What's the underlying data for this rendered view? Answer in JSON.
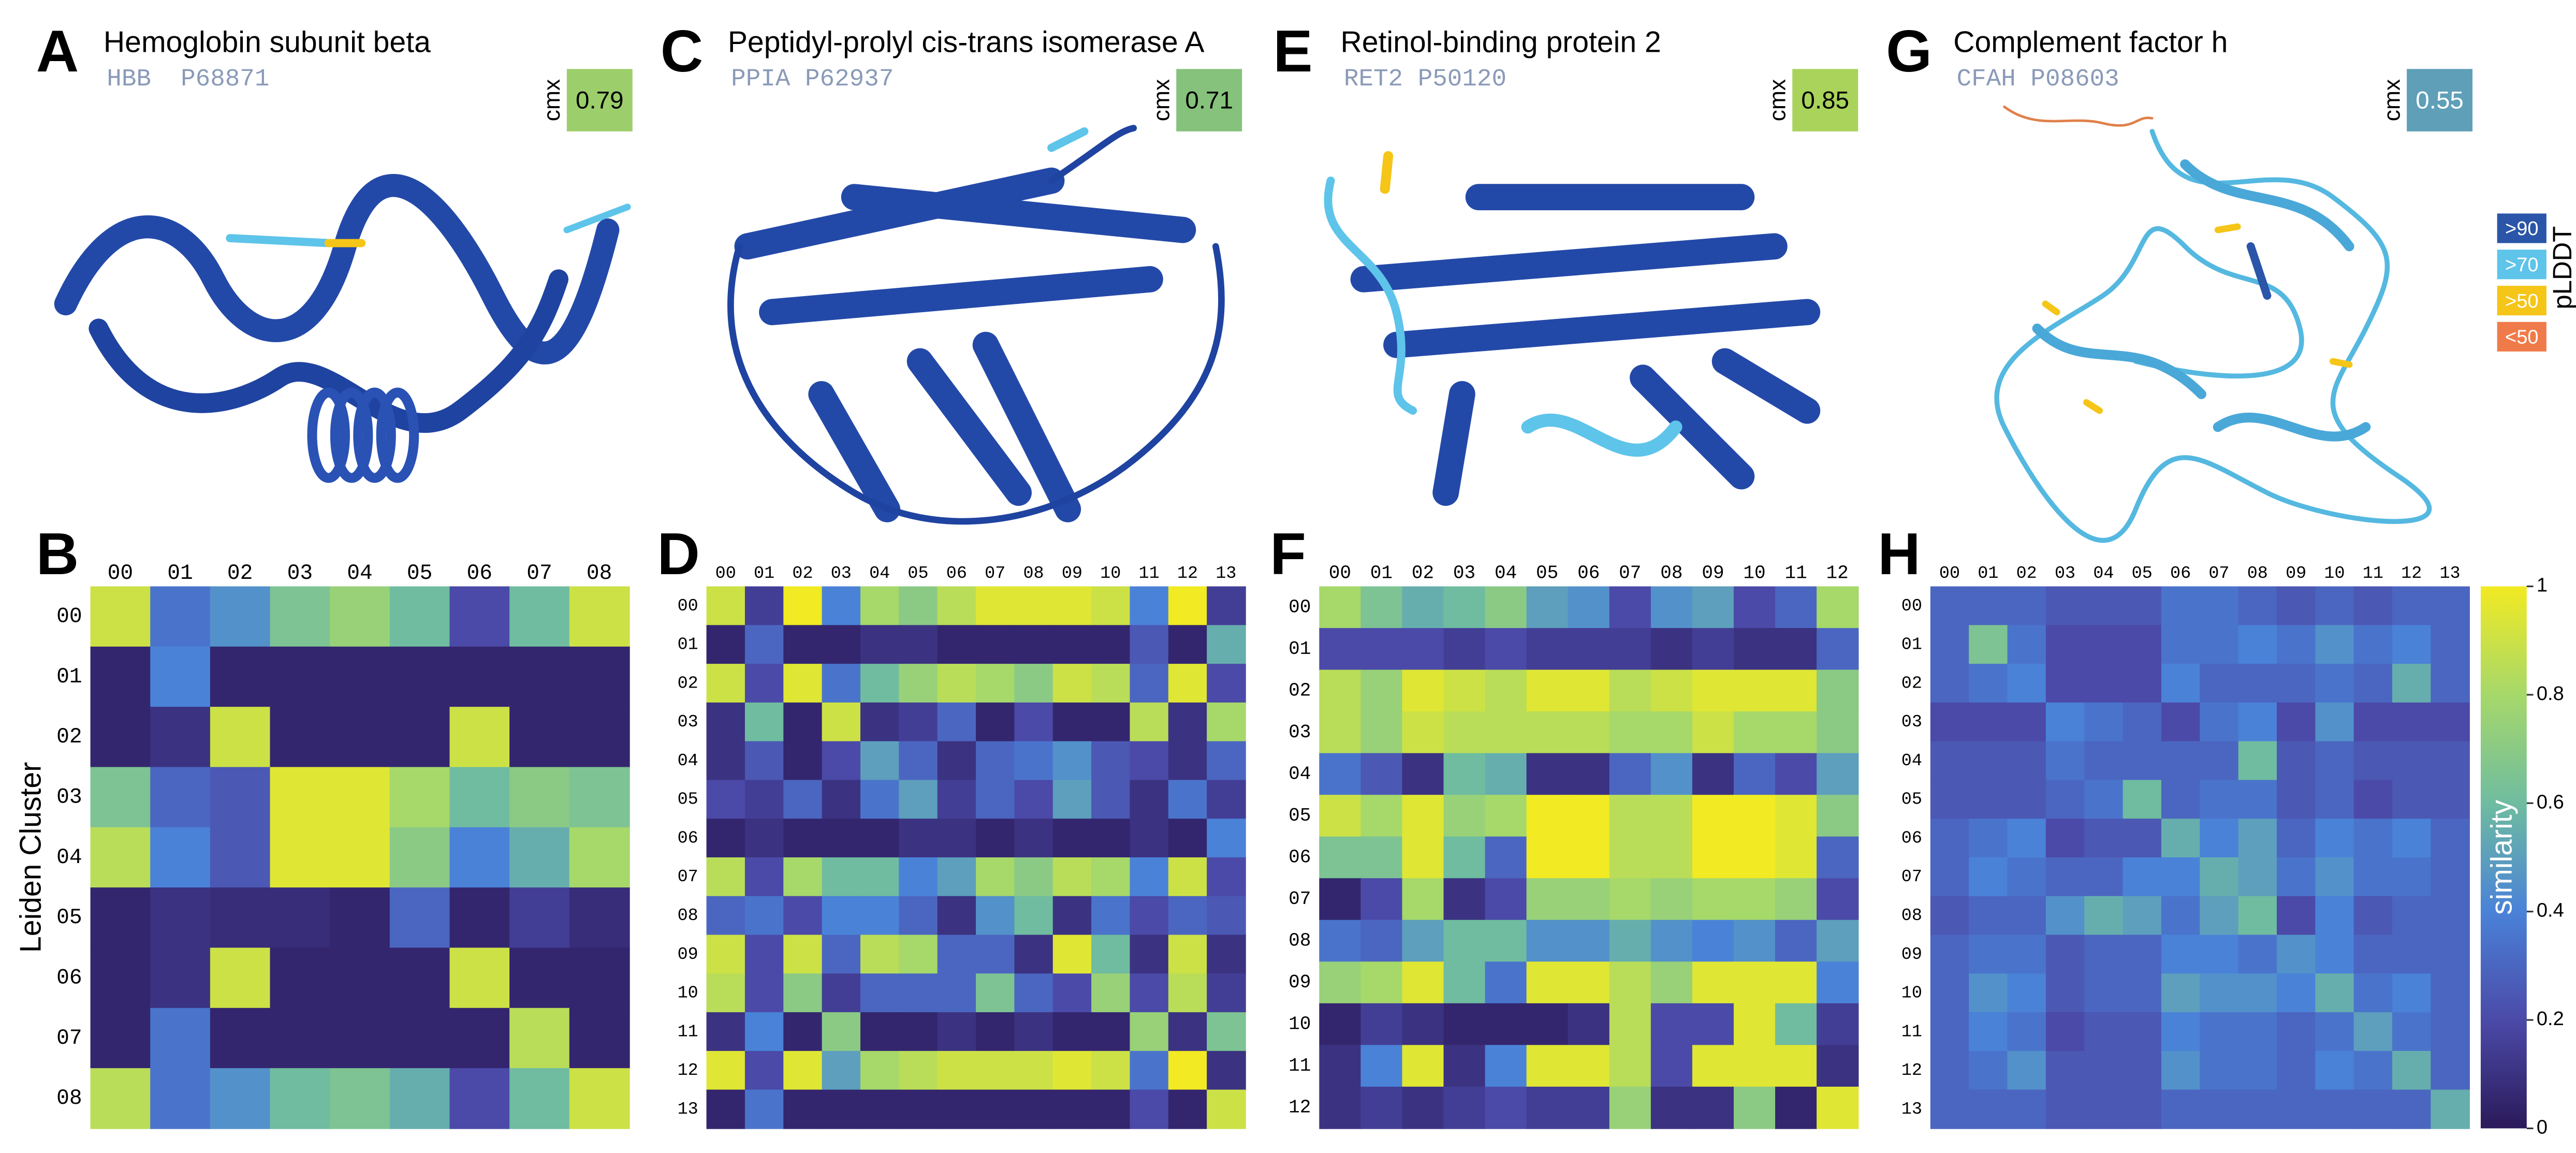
{
  "score_label": "cmx",
  "proteins": [
    {
      "letter": "A",
      "name": "Hemoglobin subunit beta",
      "gene": "HBB",
      "accession": "P68871",
      "cmx": 0.79,
      "cmx_color": "#9ccf6c"
    },
    {
      "letter": "C",
      "name": "Peptidyl-prolyl cis-trans isomerase A",
      "gene": "PPIA",
      "accession": "P62937",
      "cmx": 0.71,
      "cmx_color": "#86c27c"
    },
    {
      "letter": "E",
      "name": "Retinol-binding protein 2",
      "gene": "RET2",
      "accession": "P50120",
      "cmx": 0.85,
      "cmx_color": "#a9d35a"
    },
    {
      "letter": "G",
      "name": "Complement factor h",
      "gene": "CFAH",
      "accession": "P08603",
      "cmx": 0.55,
      "cmx_color": "#5f9fb8"
    }
  ],
  "plddt_legend": {
    "title": "pLDDT",
    "items": [
      {
        "label": ">90",
        "color": "#2a55a8"
      },
      {
        "label": ">70",
        "color": "#5ec4ea"
      },
      {
        "label": ">50",
        "color": "#f5c518"
      },
      {
        "label": "<50",
        "color": "#f07b4a"
      }
    ]
  },
  "chart_data": [
    {
      "type": "heatmap",
      "letter": "B",
      "ylabel": "Leiden Cluster",
      "categories": [
        "00",
        "01",
        "02",
        "03",
        "04",
        "05",
        "06",
        "07",
        "08"
      ],
      "values": [
        [
          0.9,
          0.35,
          0.45,
          0.65,
          0.75,
          0.6,
          0.2,
          0.6,
          0.9
        ],
        [
          0.05,
          0.4,
          0.05,
          0.05,
          0.05,
          0.05,
          0.05,
          0.05,
          0.05
        ],
        [
          0.05,
          0.1,
          0.9,
          0.05,
          0.05,
          0.05,
          0.9,
          0.05,
          0.05
        ],
        [
          0.65,
          0.3,
          0.25,
          0.95,
          0.95,
          0.8,
          0.6,
          0.7,
          0.65
        ],
        [
          0.85,
          0.4,
          0.25,
          0.95,
          0.95,
          0.7,
          0.4,
          0.55,
          0.8
        ],
        [
          0.05,
          0.1,
          0.08,
          0.08,
          0.05,
          0.3,
          0.05,
          0.15,
          0.08
        ],
        [
          0.05,
          0.1,
          0.9,
          0.05,
          0.05,
          0.05,
          0.9,
          0.05,
          0.05
        ],
        [
          0.05,
          0.35,
          0.05,
          0.05,
          0.05,
          0.05,
          0.05,
          0.85,
          0.05
        ],
        [
          0.85,
          0.35,
          0.45,
          0.6,
          0.65,
          0.55,
          0.2,
          0.6,
          0.9
        ]
      ]
    },
    {
      "type": "heatmap",
      "letter": "D",
      "categories": [
        "00",
        "01",
        "02",
        "03",
        "04",
        "05",
        "06",
        "07",
        "08",
        "09",
        "10",
        "11",
        "12",
        "13"
      ],
      "values": [
        [
          0.9,
          0.15,
          1,
          0.4,
          0.8,
          0.7,
          0.85,
          0.95,
          0.95,
          0.95,
          0.9,
          0.4,
          1,
          0.15
        ],
        [
          0.05,
          0.3,
          0.05,
          0.05,
          0.1,
          0.1,
          0.05,
          0.05,
          0.05,
          0.05,
          0.05,
          0.25,
          0.05,
          0.55
        ],
        [
          0.9,
          0.2,
          0.95,
          0.35,
          0.6,
          0.75,
          0.85,
          0.8,
          0.7,
          0.9,
          0.85,
          0.3,
          0.95,
          0.2
        ],
        [
          0.1,
          0.6,
          0.05,
          0.9,
          0.1,
          0.15,
          0.3,
          0.05,
          0.2,
          0.05,
          0.05,
          0.85,
          0.1,
          0.8
        ],
        [
          0.1,
          0.25,
          0.05,
          0.2,
          0.5,
          0.3,
          0.1,
          0.3,
          0.35,
          0.45,
          0.25,
          0.2,
          0.1,
          0.3
        ],
        [
          0.2,
          0.15,
          0.3,
          0.1,
          0.35,
          0.5,
          0.15,
          0.3,
          0.2,
          0.5,
          0.25,
          0.1,
          0.35,
          0.15
        ],
        [
          0.05,
          0.1,
          0.05,
          0.05,
          0.05,
          0.1,
          0.1,
          0.05,
          0.1,
          0.05,
          0.05,
          0.1,
          0.05,
          0.4
        ],
        [
          0.85,
          0.2,
          0.8,
          0.6,
          0.6,
          0.4,
          0.5,
          0.8,
          0.7,
          0.85,
          0.8,
          0.4,
          0.9,
          0.2
        ],
        [
          0.3,
          0.35,
          0.2,
          0.4,
          0.4,
          0.3,
          0.1,
          0.45,
          0.6,
          0.1,
          0.35,
          0.2,
          0.3,
          0.25
        ],
        [
          0.9,
          0.2,
          0.9,
          0.3,
          0.85,
          0.8,
          0.3,
          0.3,
          0.1,
          0.95,
          0.6,
          0.1,
          0.9,
          0.1
        ],
        [
          0.85,
          0.2,
          0.7,
          0.15,
          0.3,
          0.3,
          0.3,
          0.65,
          0.3,
          0.2,
          0.75,
          0.2,
          0.85,
          0.15
        ],
        [
          0.1,
          0.4,
          0.05,
          0.7,
          0.05,
          0.05,
          0.1,
          0.05,
          0.1,
          0.05,
          0.05,
          0.75,
          0.1,
          0.65
        ],
        [
          0.95,
          0.2,
          0.95,
          0.5,
          0.8,
          0.85,
          0.9,
          0.9,
          0.9,
          0.95,
          0.9,
          0.35,
          1,
          0.1
        ],
        [
          0.05,
          0.35,
          0.05,
          0.05,
          0.05,
          0.05,
          0.05,
          0.05,
          0.05,
          0.05,
          0.05,
          0.2,
          0.05,
          0.9
        ]
      ]
    },
    {
      "type": "heatmap",
      "letter": "F",
      "categories": [
        "00",
        "01",
        "02",
        "03",
        "04",
        "05",
        "06",
        "07",
        "08",
        "09",
        "10",
        "11",
        "12"
      ],
      "values": [
        [
          0.8,
          0.65,
          0.55,
          0.6,
          0.7,
          0.5,
          0.45,
          0.2,
          0.45,
          0.5,
          0.2,
          0.3,
          0.8
        ],
        [
          0.2,
          0.2,
          0.2,
          0.15,
          0.2,
          0.15,
          0.15,
          0.15,
          0.1,
          0.15,
          0.1,
          0.1,
          0.3
        ],
        [
          0.85,
          0.75,
          0.95,
          0.9,
          0.85,
          0.95,
          0.95,
          0.85,
          0.9,
          0.95,
          0.95,
          0.95,
          0.7
        ],
        [
          0.85,
          0.75,
          0.9,
          0.85,
          0.85,
          0.85,
          0.85,
          0.8,
          0.8,
          0.9,
          0.8,
          0.8,
          0.7
        ],
        [
          0.35,
          0.25,
          0.1,
          0.6,
          0.55,
          0.1,
          0.1,
          0.3,
          0.45,
          0.1,
          0.3,
          0.2,
          0.5
        ],
        [
          0.9,
          0.8,
          0.95,
          0.75,
          0.8,
          1,
          1,
          0.85,
          0.85,
          1,
          1,
          0.95,
          0.7
        ],
        [
          0.65,
          0.65,
          0.95,
          0.6,
          0.3,
          1,
          1,
          0.85,
          0.85,
          1,
          1,
          0.95,
          0.3
        ],
        [
          0.05,
          0.2,
          0.8,
          0.1,
          0.2,
          0.75,
          0.75,
          0.8,
          0.75,
          0.8,
          0.8,
          0.75,
          0.2
        ],
        [
          0.35,
          0.3,
          0.5,
          0.6,
          0.6,
          0.45,
          0.45,
          0.55,
          0.45,
          0.4,
          0.45,
          0.3,
          0.5
        ],
        [
          0.75,
          0.8,
          0.95,
          0.6,
          0.35,
          0.95,
          0.95,
          0.85,
          0.75,
          0.95,
          0.95,
          0.95,
          0.4
        ],
        [
          0.05,
          0.15,
          0.1,
          0.05,
          0.05,
          0.05,
          0.1,
          0.85,
          0.2,
          0.2,
          0.95,
          0.6,
          0.15
        ],
        [
          0.1,
          0.4,
          0.95,
          0.1,
          0.4,
          0.95,
          0.95,
          0.85,
          0.2,
          0.95,
          0.95,
          0.95,
          0.1
        ],
        [
          0.1,
          0.15,
          0.1,
          0.15,
          0.2,
          0.15,
          0.15,
          0.75,
          0.1,
          0.1,
          0.7,
          0.05,
          0.95
        ]
      ]
    },
    {
      "type": "heatmap",
      "letter": "H",
      "categories": [
        "00",
        "01",
        "02",
        "03",
        "04",
        "05",
        "06",
        "07",
        "08",
        "09",
        "10",
        "11",
        "12",
        "13"
      ],
      "values": [
        [
          0.3,
          0.3,
          0.3,
          0.25,
          0.25,
          0.25,
          0.35,
          0.35,
          0.3,
          0.25,
          0.3,
          0.25,
          0.3,
          0.3
        ],
        [
          0.3,
          0.65,
          0.35,
          0.2,
          0.2,
          0.2,
          0.35,
          0.35,
          0.4,
          0.35,
          0.45,
          0.35,
          0.4,
          0.3
        ],
        [
          0.3,
          0.35,
          0.4,
          0.2,
          0.2,
          0.2,
          0.4,
          0.3,
          0.3,
          0.3,
          0.35,
          0.3,
          0.55,
          0.3
        ],
        [
          0.2,
          0.2,
          0.2,
          0.4,
          0.35,
          0.3,
          0.2,
          0.35,
          0.4,
          0.2,
          0.45,
          0.2,
          0.2,
          0.2
        ],
        [
          0.25,
          0.25,
          0.25,
          0.35,
          0.3,
          0.3,
          0.3,
          0.3,
          0.6,
          0.25,
          0.3,
          0.25,
          0.25,
          0.25
        ],
        [
          0.25,
          0.25,
          0.25,
          0.3,
          0.35,
          0.6,
          0.3,
          0.35,
          0.35,
          0.25,
          0.3,
          0.2,
          0.25,
          0.25
        ],
        [
          0.3,
          0.35,
          0.4,
          0.2,
          0.25,
          0.25,
          0.55,
          0.4,
          0.5,
          0.3,
          0.4,
          0.35,
          0.4,
          0.3
        ],
        [
          0.3,
          0.4,
          0.35,
          0.3,
          0.3,
          0.4,
          0.4,
          0.55,
          0.5,
          0.35,
          0.45,
          0.35,
          0.35,
          0.3
        ],
        [
          0.25,
          0.3,
          0.3,
          0.45,
          0.55,
          0.5,
          0.35,
          0.5,
          0.6,
          0.2,
          0.4,
          0.25,
          0.3,
          0.3
        ],
        [
          0.3,
          0.35,
          0.35,
          0.25,
          0.3,
          0.3,
          0.4,
          0.4,
          0.35,
          0.45,
          0.4,
          0.3,
          0.3,
          0.3
        ],
        [
          0.3,
          0.45,
          0.4,
          0.25,
          0.3,
          0.3,
          0.5,
          0.45,
          0.45,
          0.4,
          0.55,
          0.35,
          0.4,
          0.3
        ],
        [
          0.3,
          0.4,
          0.35,
          0.2,
          0.25,
          0.25,
          0.4,
          0.35,
          0.35,
          0.3,
          0.35,
          0.5,
          0.35,
          0.3
        ],
        [
          0.3,
          0.35,
          0.45,
          0.25,
          0.25,
          0.25,
          0.45,
          0.35,
          0.35,
          0.3,
          0.4,
          0.35,
          0.55,
          0.3
        ],
        [
          0.3,
          0.3,
          0.3,
          0.25,
          0.25,
          0.25,
          0.3,
          0.3,
          0.3,
          0.3,
          0.3,
          0.3,
          0.3,
          0.55
        ]
      ],
      "colorbar": {
        "label": "similarity",
        "lim": [
          0,
          1
        ],
        "ticks": [
          0,
          0.2,
          0.4,
          0.6,
          0.8,
          1
        ],
        "colormap": [
          "#2b1a5a",
          "#4b4aa8",
          "#4a82d8",
          "#6fbca0",
          "#a6d86a",
          "#f2ea22"
        ]
      }
    }
  ]
}
